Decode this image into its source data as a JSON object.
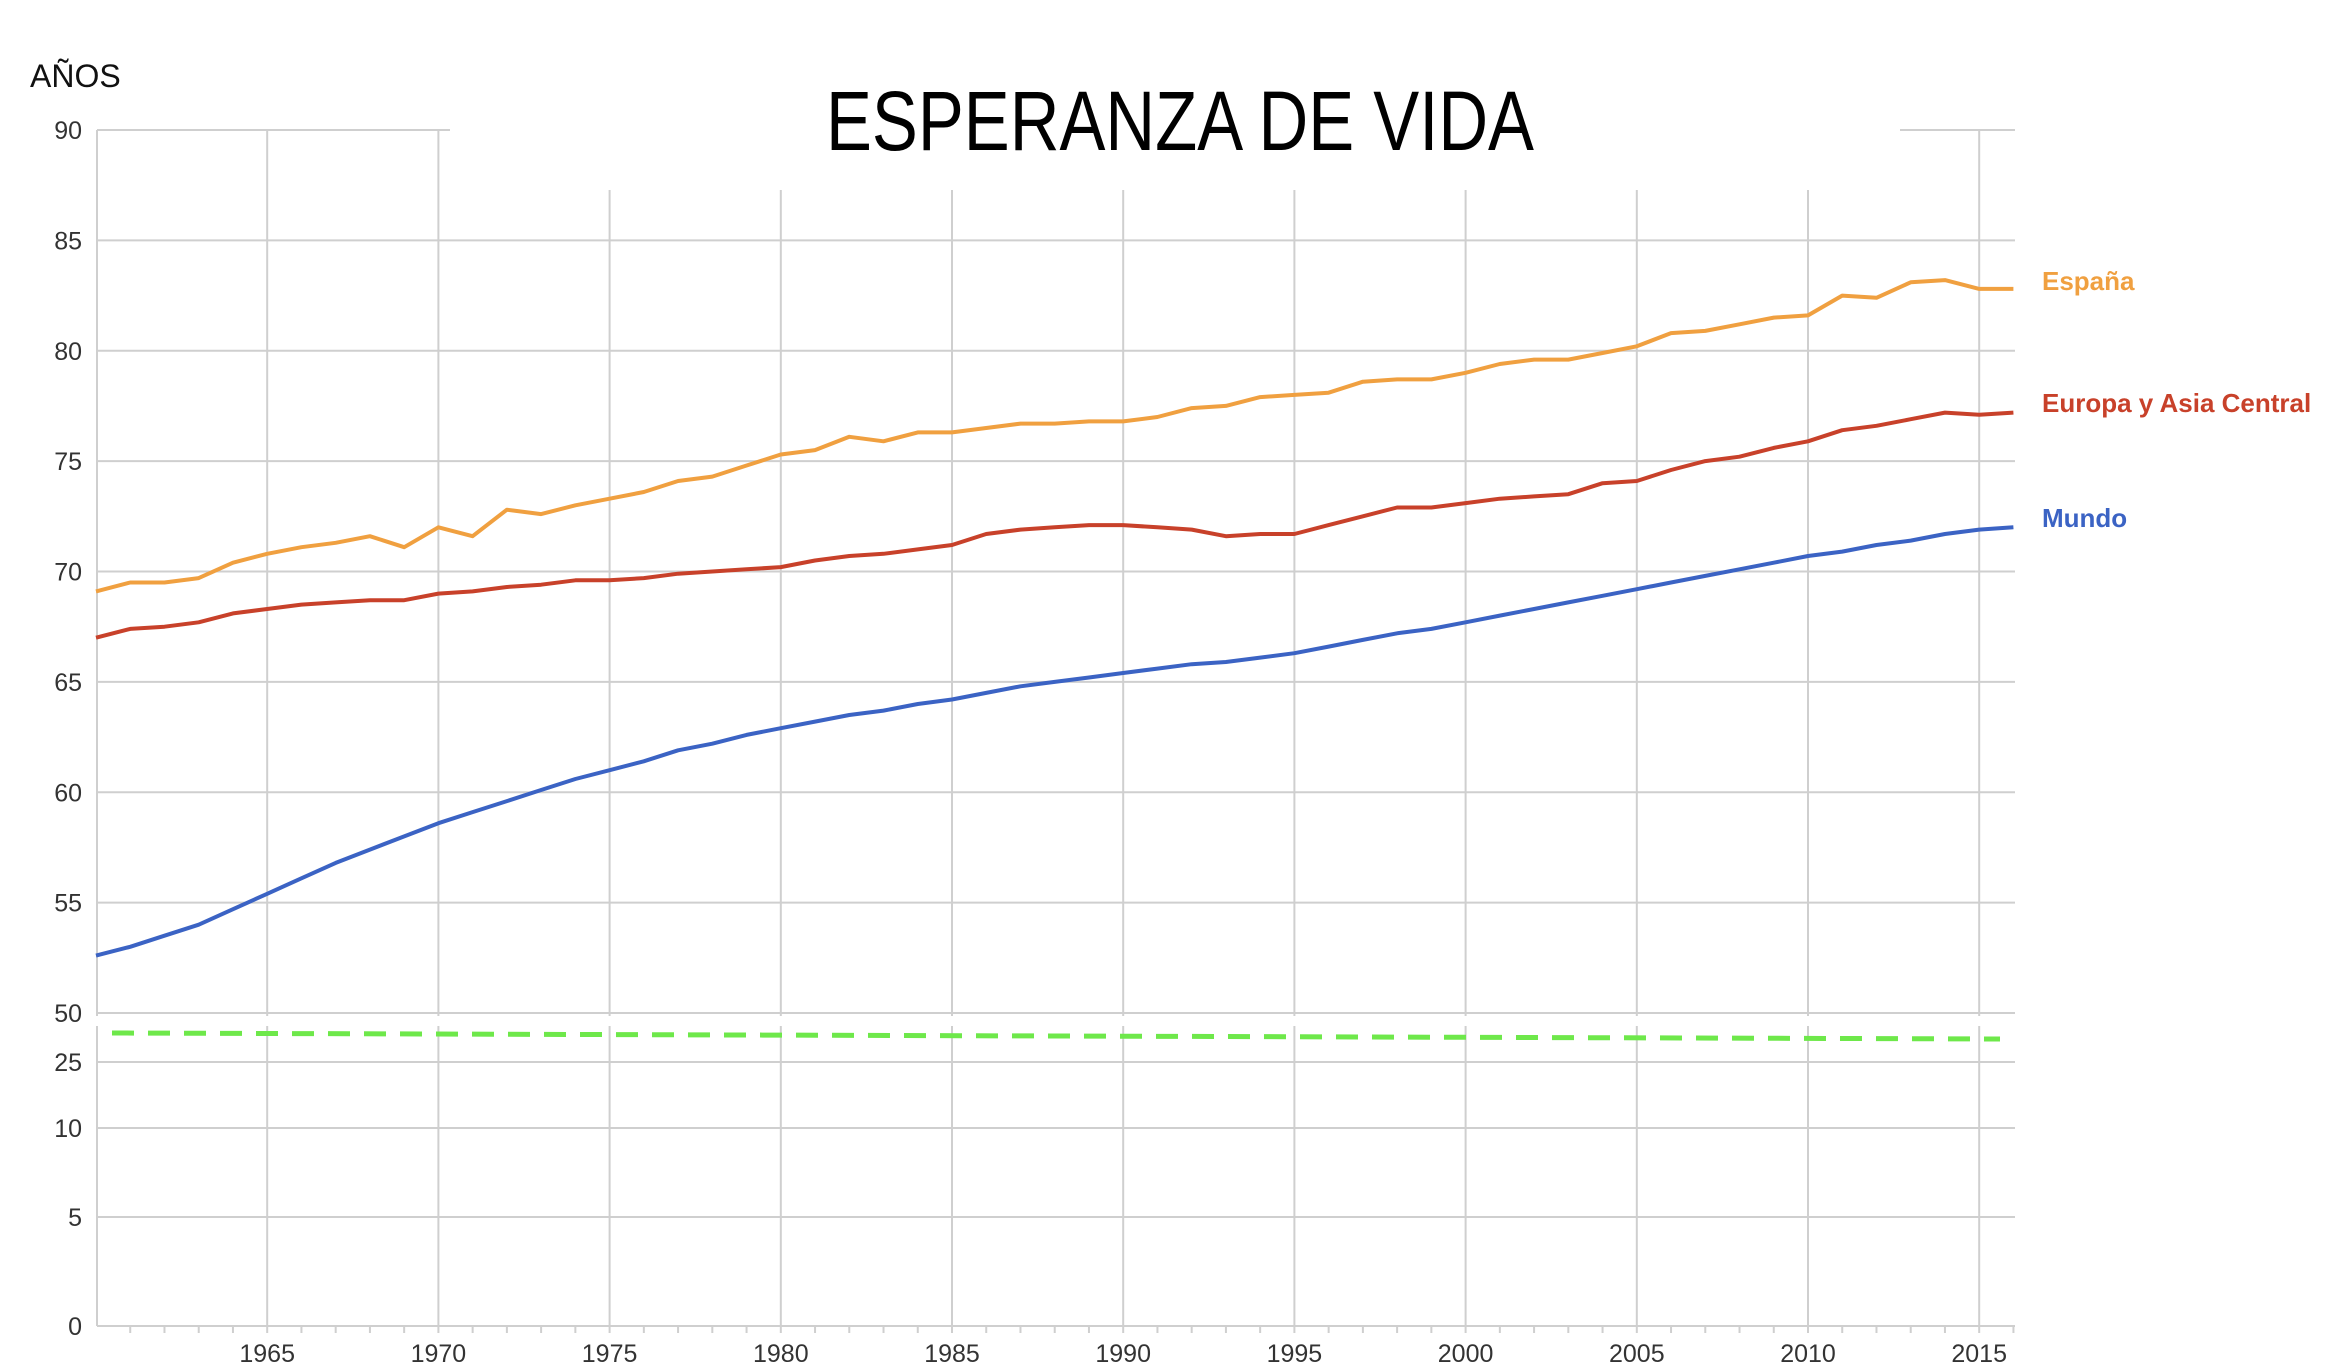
{
  "chart_data": {
    "type": "line",
    "title": "ESPERANZA DE VIDA",
    "ylabel": "AÑOS",
    "xlabel": "",
    "x": [
      1960,
      1961,
      1962,
      1963,
      1964,
      1965,
      1966,
      1967,
      1968,
      1969,
      1970,
      1971,
      1972,
      1973,
      1974,
      1975,
      1976,
      1977,
      1978,
      1979,
      1980,
      1981,
      1982,
      1983,
      1984,
      1985,
      1986,
      1987,
      1988,
      1989,
      1990,
      1991,
      1992,
      1993,
      1994,
      1995,
      1996,
      1997,
      1998,
      1999,
      2000,
      2001,
      2002,
      2003,
      2004,
      2005,
      2006,
      2007,
      2008,
      2009,
      2010,
      2011,
      2012,
      2013,
      2014,
      2015,
      2016
    ],
    "x_ticks": [
      1965,
      1970,
      1975,
      1980,
      1985,
      1990,
      1995,
      2000,
      2005,
      2010,
      2015
    ],
    "y_ticks_upper": [
      90,
      85,
      80,
      75,
      70,
      65,
      60,
      55,
      50
    ],
    "y_ticks_lower": [
      25,
      10,
      5,
      0
    ],
    "ylim": [
      0,
      90
    ],
    "y_axis_break": "between 50 and 25",
    "grid": true,
    "legend": "inline labels at right end of lines",
    "series": [
      {
        "name": "España",
        "color": "#f0a040",
        "values": [
          69.1,
          69.5,
          69.5,
          69.7,
          70.4,
          70.8,
          71.1,
          71.3,
          71.6,
          71.1,
          72.0,
          71.6,
          72.8,
          72.6,
          73.0,
          73.3,
          73.6,
          74.1,
          74.3,
          74.8,
          75.3,
          75.5,
          76.1,
          75.9,
          76.3,
          76.3,
          76.5,
          76.7,
          76.7,
          76.8,
          76.8,
          77.0,
          77.4,
          77.5,
          77.9,
          78.0,
          78.1,
          78.6,
          78.7,
          78.7,
          79.0,
          79.4,
          79.6,
          79.6,
          79.9,
          80.2,
          80.8,
          80.9,
          81.2,
          81.5,
          81.6,
          82.5,
          82.4,
          83.1,
          83.2,
          82.8,
          82.8
        ]
      },
      {
        "name": "Europa y Asia Central",
        "color": "#c8412a",
        "values": [
          67.0,
          67.4,
          67.5,
          67.7,
          68.1,
          68.3,
          68.5,
          68.6,
          68.7,
          68.7,
          69.0,
          69.1,
          69.3,
          69.4,
          69.6,
          69.6,
          69.7,
          69.9,
          70.0,
          70.1,
          70.2,
          70.5,
          70.7,
          70.8,
          71.0,
          71.2,
          71.7,
          71.9,
          72.0,
          72.1,
          72.1,
          72.0,
          71.9,
          71.6,
          71.7,
          71.7,
          72.1,
          72.5,
          72.9,
          72.9,
          73.1,
          73.3,
          73.4,
          73.5,
          74.0,
          74.1,
          74.6,
          75.0,
          75.2,
          75.6,
          75.9,
          76.4,
          76.6,
          76.9,
          77.2,
          77.1,
          77.2
        ]
      },
      {
        "name": "Mundo",
        "color": "#3b63c4",
        "values": [
          52.6,
          53.0,
          53.5,
          54.0,
          54.7,
          55.4,
          56.1,
          56.8,
          57.4,
          58.0,
          58.6,
          59.1,
          59.6,
          60.1,
          60.6,
          61.0,
          61.4,
          61.9,
          62.2,
          62.6,
          62.9,
          63.2,
          63.5,
          63.7,
          64.0,
          64.2,
          64.5,
          64.8,
          65.0,
          65.2,
          65.4,
          65.6,
          65.8,
          65.9,
          66.1,
          66.3,
          66.6,
          66.9,
          67.2,
          67.4,
          67.7,
          68.0,
          68.3,
          68.6,
          68.9,
          69.2,
          69.5,
          69.8,
          70.1,
          70.4,
          70.7,
          70.9,
          71.2,
          71.4,
          71.7,
          71.9,
          72.0
        ]
      }
    ],
    "break_marker_color": "#6ee84a"
  }
}
